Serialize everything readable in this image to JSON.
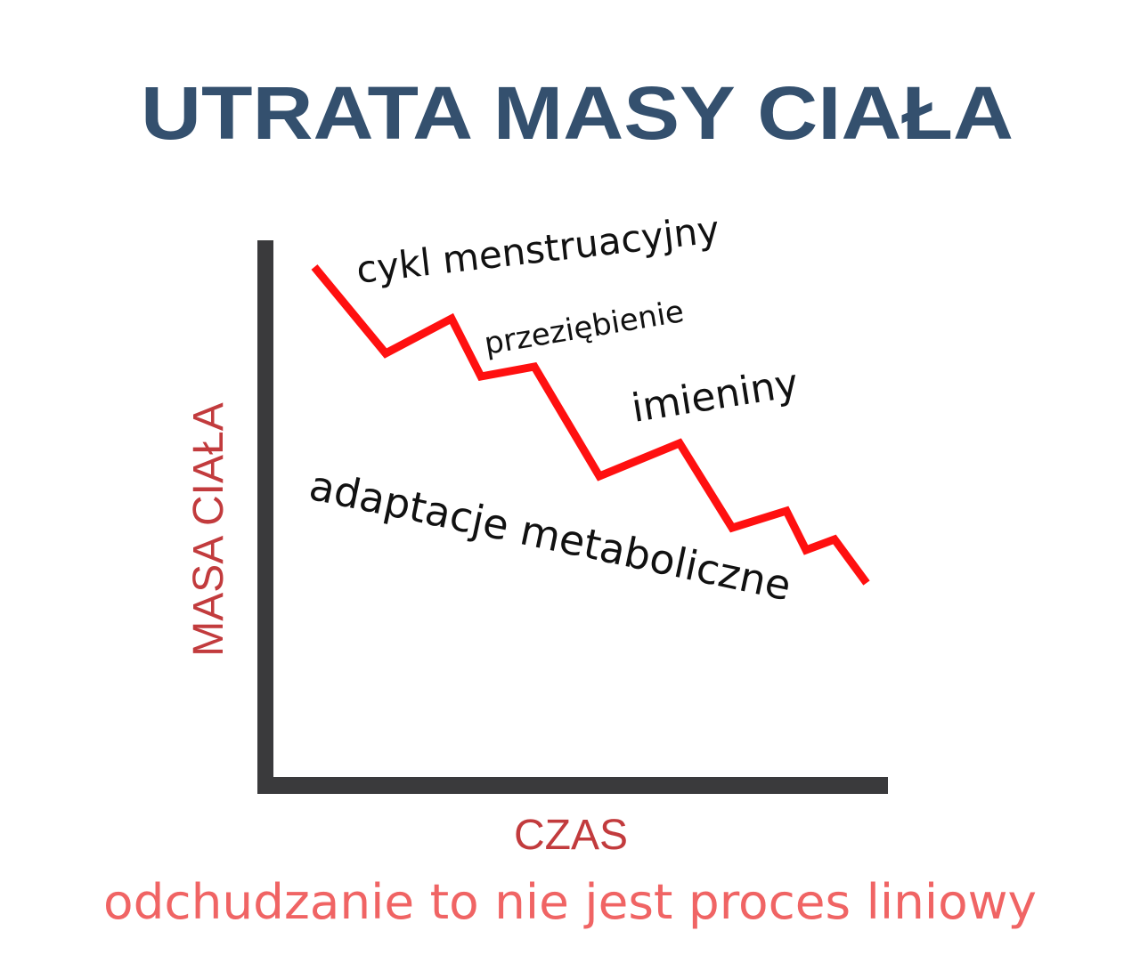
{
  "title": "UTRATA MASY CIAŁA",
  "y_axis_label": "MASA CIAŁA",
  "x_axis_label": "CZAS",
  "annotations": [
    "cykl menstruacyjny",
    "przeziębienie",
    "imieniny",
    "adaptacje metaboliczne"
  ],
  "caption": "odchudzanie to nie jest proces liniowy"
}
